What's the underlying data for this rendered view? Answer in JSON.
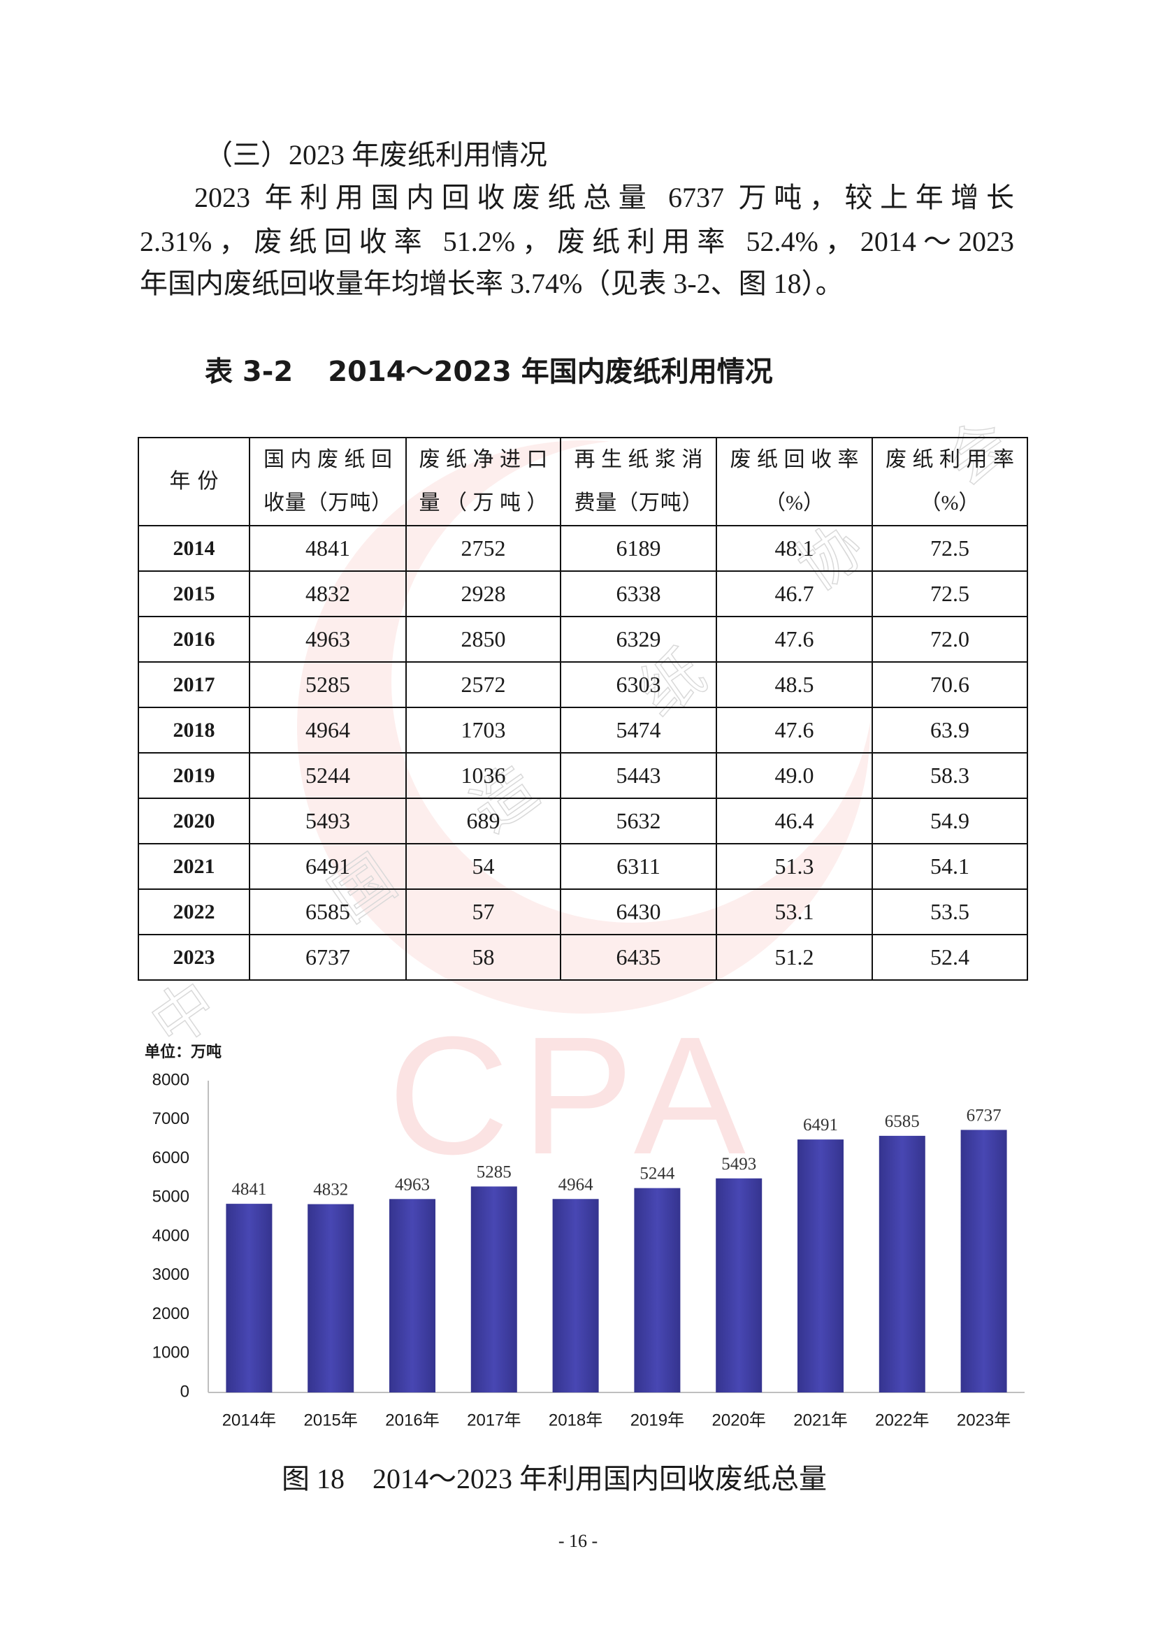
{
  "section_heading": "（三）2023 年废纸利用情况",
  "paragraph_lines": [
    "2023 年利用国内回收废纸总量 6737 万吨，较上年增长",
    "2.31%，废纸回收率 51.2%，废纸利用率 52.4%，2014～2023",
    "年国内废纸回收量年均增长率 3.74%（见表 3-2、图 18）。"
  ],
  "table": {
    "label": "表 3-2",
    "title": "2014～2023 年国内废纸利用情况",
    "headers": [
      [
        "年份"
      ],
      [
        "国内废纸回",
        "收量（万吨）"
      ],
      [
        "废纸净进口",
        "量（万吨）"
      ],
      [
        "再生纸浆消",
        "费量（万吨）"
      ],
      [
        "废纸回收率",
        "（%）"
      ],
      [
        "废纸利用率",
        "（%）"
      ]
    ],
    "rows": [
      [
        "2014",
        "4841",
        "2752",
        "6189",
        "48.1",
        "72.5"
      ],
      [
        "2015",
        "4832",
        "2928",
        "6338",
        "46.7",
        "72.5"
      ],
      [
        "2016",
        "4963",
        "2850",
        "6329",
        "47.6",
        "72.0"
      ],
      [
        "2017",
        "5285",
        "2572",
        "6303",
        "48.5",
        "70.6"
      ],
      [
        "2018",
        "4964",
        "1703",
        "5474",
        "47.6",
        "63.9"
      ],
      [
        "2019",
        "5244",
        "1036",
        "5443",
        "49.0",
        "58.3"
      ],
      [
        "2020",
        "5493",
        "689",
        "5632",
        "46.4",
        "54.9"
      ],
      [
        "2021",
        "6491",
        "54",
        "6311",
        "51.3",
        "54.1"
      ],
      [
        "2022",
        "6585",
        "57",
        "6430",
        "53.1",
        "53.5"
      ],
      [
        "2023",
        "6737",
        "58",
        "6435",
        "51.2",
        "52.4"
      ]
    ]
  },
  "chart_data": {
    "type": "bar",
    "unit_label": "单位：万吨",
    "categories": [
      "2014年",
      "2015年",
      "2016年",
      "2017年",
      "2018年",
      "2019年",
      "2020年",
      "2021年",
      "2022年",
      "2023年"
    ],
    "values": [
      4841,
      4832,
      4963,
      5285,
      4964,
      5244,
      5493,
      6491,
      6585,
      6737
    ],
    "data_labels": [
      "4841",
      "4832",
      "4963",
      "5285",
      "4964",
      "5244",
      "5493",
      "6491",
      "6585",
      "6737"
    ],
    "ylim": [
      0,
      8000
    ],
    "yticks": [
      0,
      1000,
      2000,
      3000,
      4000,
      5000,
      6000,
      7000,
      8000
    ],
    "ytick_labels": [
      "0",
      "1000",
      "2000",
      "3000",
      "4000",
      "5000",
      "6000",
      "7000",
      "8000"
    ],
    "grid": false,
    "legend": "none",
    "bar_color": "#4847b3",
    "bar_edge_color": "#35348f"
  },
  "caption": {
    "label": "图 18",
    "title": "2014～2023 年利用国内回收废纸总量"
  },
  "page_number": "- 16 -",
  "watermark": {
    "text": "CPA",
    "chars": [
      "中",
      "国",
      "造",
      "纸",
      "协",
      "会"
    ],
    "logo_color": "#fcecea",
    "text_color": "#fbe1e1"
  }
}
